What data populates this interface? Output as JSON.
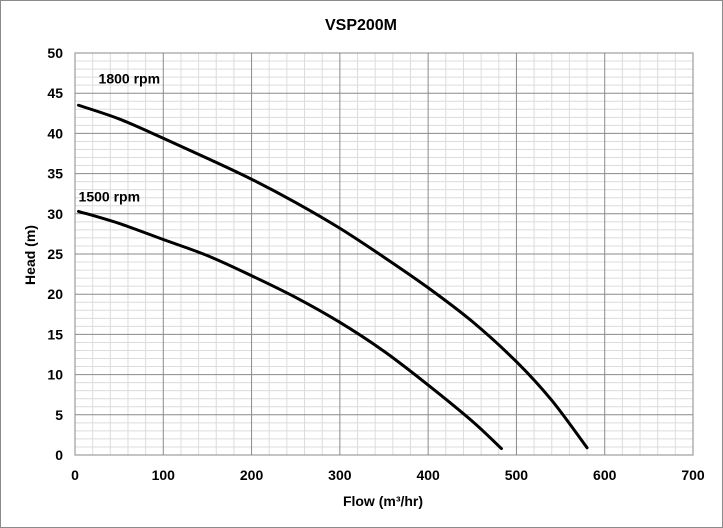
{
  "chart_data": {
    "type": "line",
    "title": "VSP200M",
    "xlabel": "Flow (m³/hr)",
    "ylabel": "Head (m)",
    "xlim": [
      0,
      700
    ],
    "ylim": [
      0,
      50
    ],
    "x_ticks": [
      0,
      100,
      200,
      300,
      400,
      500,
      600,
      700
    ],
    "y_ticks": [
      0,
      5,
      10,
      15,
      20,
      25,
      30,
      35,
      40,
      45,
      50
    ],
    "x_tick_labels": [
      "0",
      "100",
      "200",
      "300",
      "400",
      "500",
      "600",
      "700"
    ],
    "y_tick_labels": [
      "0",
      "5",
      "10",
      "15",
      "20",
      "25",
      "30",
      "35",
      "40",
      "45",
      "50"
    ],
    "grid": {
      "major": true,
      "minor": true
    },
    "series": [
      {
        "name": "1800 rpm",
        "color": "#000000",
        "x": [
          4,
          50,
          100,
          150,
          200,
          250,
          300,
          350,
          400,
          450,
          500,
          540,
          580
        ],
        "y": [
          43.5,
          41.8,
          39.4,
          36.9,
          34.3,
          31.4,
          28.2,
          24.6,
          20.8,
          16.6,
          11.6,
          6.8,
          0.9
        ]
      },
      {
        "name": "1500 rpm",
        "color": "#000000",
        "x": [
          4,
          50,
          100,
          150,
          200,
          250,
          300,
          350,
          400,
          450,
          483
        ],
        "y": [
          30.3,
          28.8,
          26.8,
          24.8,
          22.3,
          19.6,
          16.5,
          12.9,
          8.7,
          4.2,
          0.8
        ]
      }
    ]
  }
}
